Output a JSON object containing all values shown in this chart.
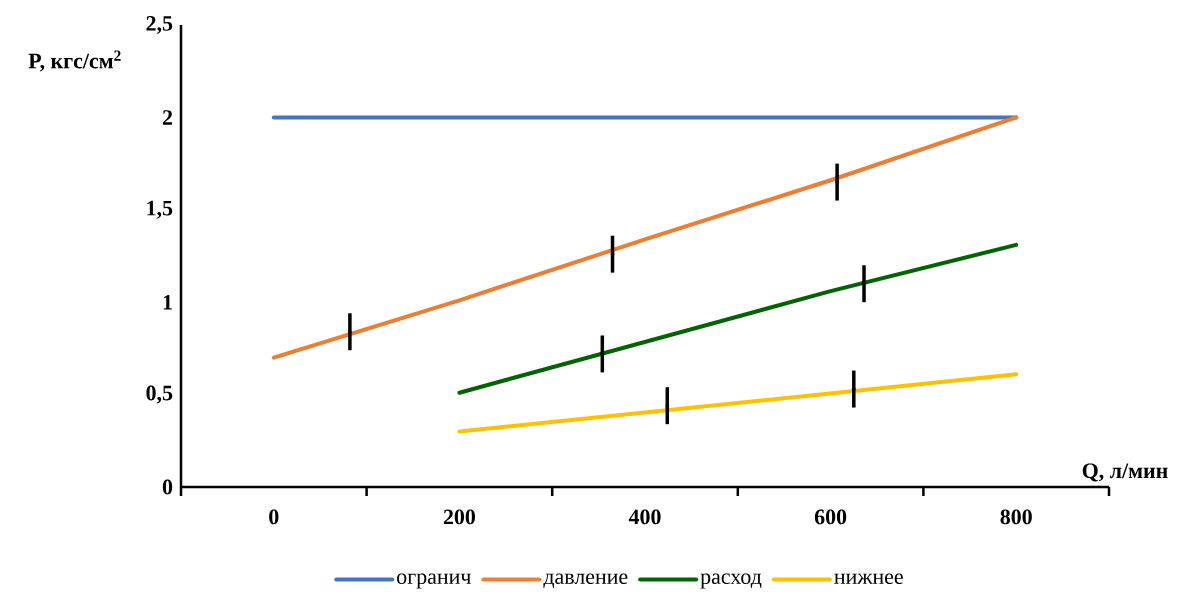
{
  "chart_data": {
    "type": "line",
    "xlabel": "Q, л/мин",
    "ylabel": "P, кгс/см$^{2}$",
    "xlim": [
      -100,
      900
    ],
    "ylim": [
      0,
      2.5
    ],
    "xticks": [
      {
        "value": -100,
        "label": null
      },
      0,
      {
        "value": 100,
        "label": null
      },
      200,
      {
        "value": 300,
        "label": null
      },
      400,
      {
        "value": 500,
        "label": null
      },
      600,
      {
        "value": 700,
        "label": null
      },
      800,
      {
        "value": 900,
        "label": null
      }
    ],
    "yticks": [
      0,
      {
        "value": 0.5,
        "label": "0,5"
      },
      1,
      {
        "value": 1.5,
        "label": "1,5"
      },
      2,
      {
        "value": 2.5,
        "label": "2,5"
      }
    ],
    "legend": "bottom",
    "series": [
      {
        "name": "огранич",
        "color": "#4472c4",
        "x": [
          0,
          800
        ],
        "values": [
          2,
          2
        ]
      },
      {
        "name": "давление",
        "color": "#ed7d31",
        "x": [
          0,
          200,
          400,
          600,
          800
        ],
        "values": [
          0.7,
          1.01,
          1.34,
          1.66,
          2.0
        ]
      },
      {
        "name": "расход",
        "color": "#006400",
        "x": [
          200,
          600,
          800
        ],
        "values": [
          0.51,
          1.06,
          1.31
        ]
      },
      {
        "name": "нижнее",
        "color": "#ffc000",
        "x": [
          200,
          800
        ],
        "values": [
          0.3,
          0.61
        ]
      },
      {
        "type": "scatter",
        "marker": "circle",
        "color": "#000000",
        "x": [
          82,
          365,
          607,
          354,
          636,
          424,
          625
        ],
        "values": [
          0.84,
          1.26,
          1.65,
          0.72,
          1.1,
          0.44,
          0.53
        ],
        "errors": [
          0.1,
          0.1,
          0.1,
          0.1,
          0.1,
          0.1,
          0.1
        ]
      }
    ]
  }
}
